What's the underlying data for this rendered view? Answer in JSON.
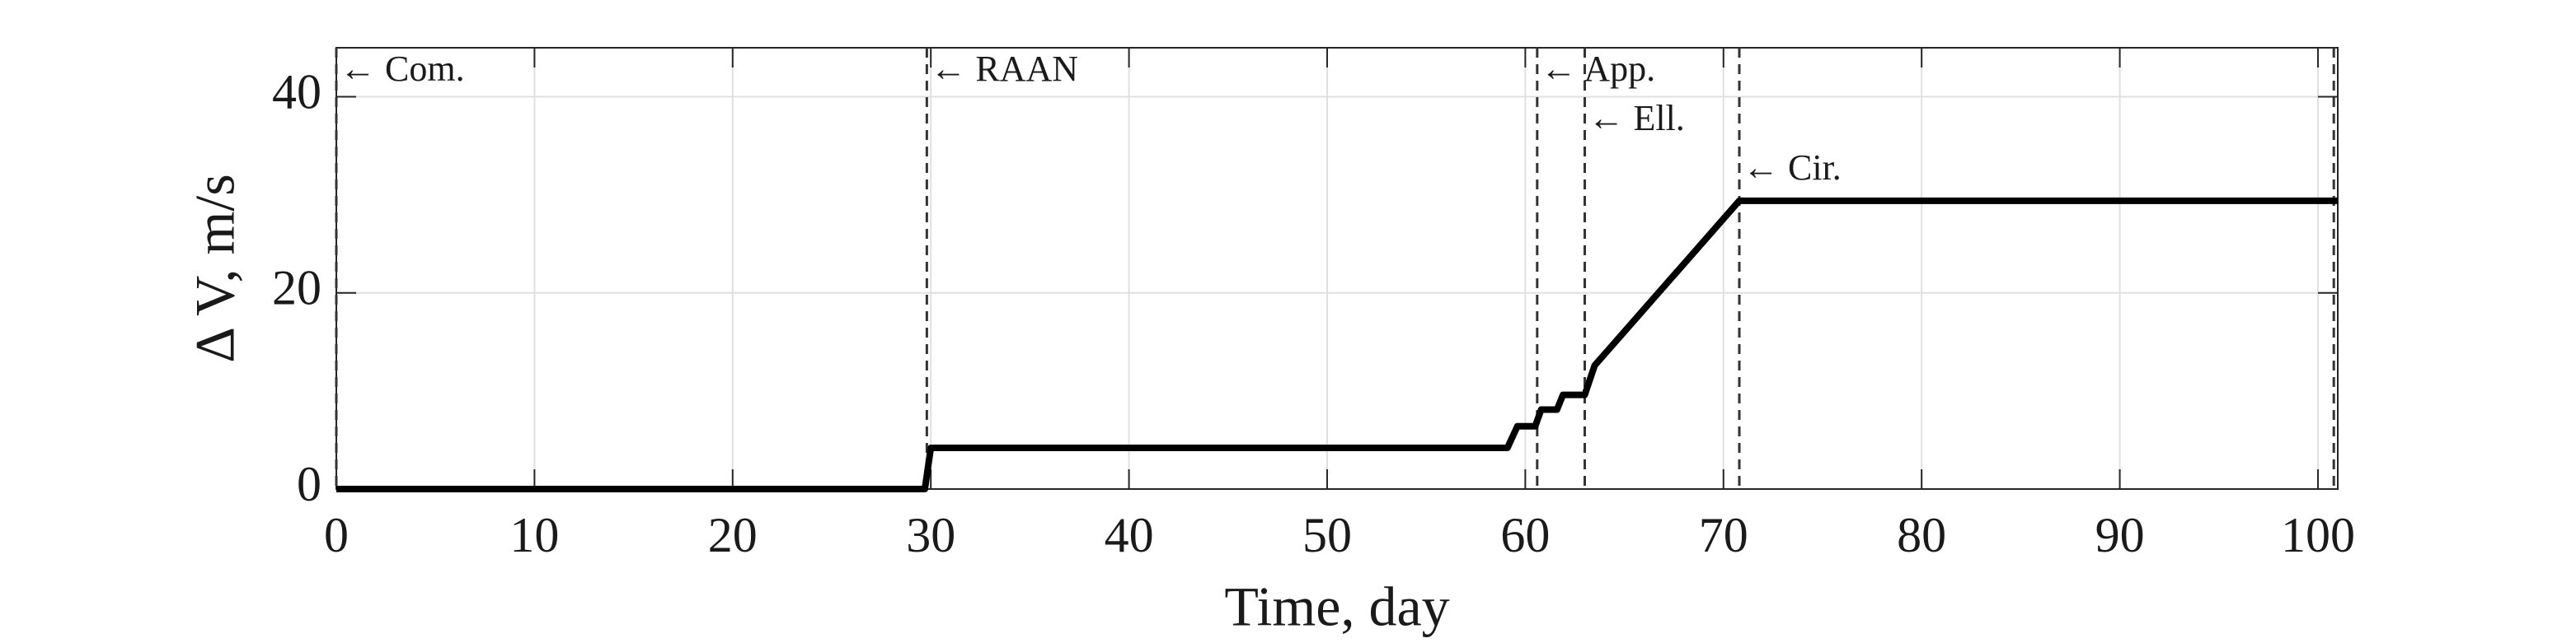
{
  "chart_data": {
    "type": "line",
    "x_label": "Time, day",
    "y_label": "Δ V, m/s",
    "xlim": [
      0,
      101
    ],
    "ylim": [
      0,
      45
    ],
    "xticks": [
      0,
      10,
      20,
      30,
      40,
      50,
      60,
      70,
      80,
      90,
      100
    ],
    "yticks": [
      0,
      20,
      40
    ],
    "grid": true,
    "series": [
      {
        "color": "#000000",
        "x": [
          0,
          29.7,
          30,
          59.1,
          59.6,
          60.5,
          60.8,
          61.6,
          61.9,
          63.0,
          63.5,
          70.8,
          101
        ],
        "values": [
          0,
          0,
          4.2,
          4.2,
          6.4,
          6.4,
          8.1,
          8.1,
          9.6,
          9.6,
          12.6,
          29.4,
          29.4
        ]
      }
    ],
    "events": [
      {
        "x": 0,
        "label": "← Com."
      },
      {
        "x": 29.8,
        "label": "← RAAN"
      },
      {
        "x": 60.6,
        "label": "← App."
      },
      {
        "x": 63.0,
        "label": "← Ell."
      },
      {
        "x": 70.8,
        "label": "← Cir."
      },
      {
        "x": 100.8
      }
    ]
  }
}
